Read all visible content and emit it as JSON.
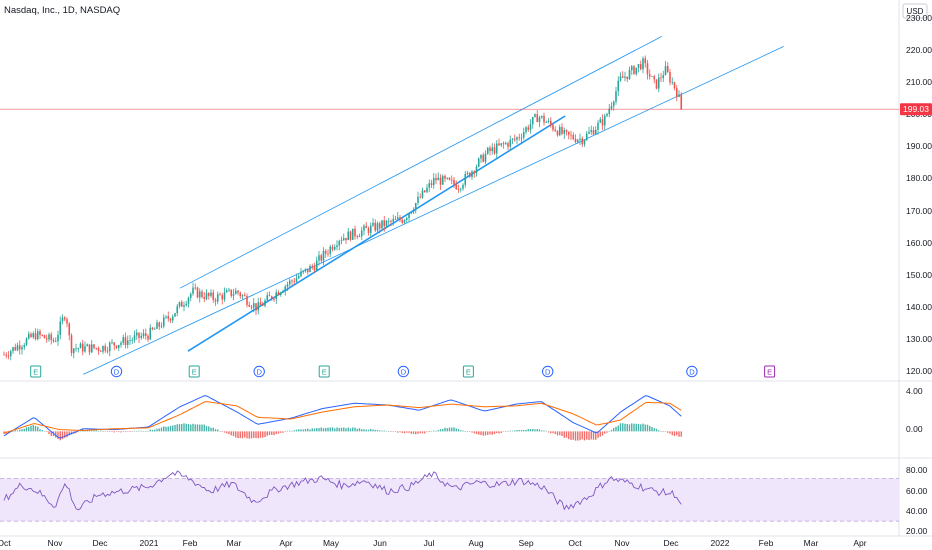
{
  "header": {
    "title": "Nasdaq, Inc., 1D, NASDAQ",
    "currency": "USD"
  },
  "price_axis": {
    "ticks": [
      "230.00",
      "220.00",
      "210.00",
      "200.00",
      "190.00",
      "180.00",
      "170.00",
      "160.00",
      "150.00",
      "140.00",
      "130.00",
      "120.00"
    ],
    "last_price_label": "199.03"
  },
  "macd_axis": {
    "ticks": [
      "4.00",
      "0.00"
    ]
  },
  "rsi_axis": {
    "ticks": [
      "80.00",
      "60.00",
      "40.00",
      "20.00"
    ]
  },
  "time_axis": {
    "labels": [
      "Oct",
      "Nov",
      "Dec",
      "2021",
      "Feb",
      "Mar",
      "Apr",
      "May",
      "Jun",
      "Jul",
      "Aug",
      "Sep",
      "Oct",
      "Nov",
      "Dec",
      "2022",
      "Feb",
      "Mar",
      "Apr"
    ]
  },
  "events": [
    {
      "label": "E",
      "date": "2020-10-21"
    },
    {
      "label": "D",
      "date": "2020-12-11"
    },
    {
      "label": "E",
      "date": "2021-01-29"
    },
    {
      "label": "D",
      "date": "2021-03-11"
    },
    {
      "label": "E",
      "date": "2021-04-21"
    },
    {
      "label": "D",
      "date": "2021-06-10"
    },
    {
      "label": "E",
      "date": "2021-07-21"
    },
    {
      "label": "D",
      "date": "2021-09-09"
    },
    {
      "label": "D",
      "date": "2021-12-09"
    },
    {
      "label": "E",
      "date": "2022-01-27"
    }
  ],
  "colors": {
    "up": "#26a69a",
    "down": "#ef5350",
    "trend": "#2196f3",
    "price_line": "#f23645",
    "macd": "#2962ff",
    "signal": "#ff6d00",
    "rsi": "#7e57c2",
    "rsi_band": "#f0e6fb",
    "axis_text": "#131722",
    "grid": "#e0e3eb"
  },
  "chart_data": [
    {
      "type": "candlestick",
      "ylim": [
        117,
        232
      ],
      "last_price": 199.03,
      "series": [
        {
          "x": "2020-10-01",
          "y": 125.0
        },
        {
          "x": "2020-10-21",
          "y": 131.0
        },
        {
          "x": "2020-11-02",
          "y": 129.0
        },
        {
          "x": "2020-11-09",
          "y": 138.0
        },
        {
          "x": "2020-11-12",
          "y": 127.0
        },
        {
          "x": "2020-12-01",
          "y": 127.0
        },
        {
          "x": "2020-12-31",
          "y": 131.0
        },
        {
          "x": "2021-01-15",
          "y": 137.0
        },
        {
          "x": "2021-01-28",
          "y": 144.0
        },
        {
          "x": "2021-02-10",
          "y": 142.0
        },
        {
          "x": "2021-02-25",
          "y": 144.0
        },
        {
          "x": "2021-03-10",
          "y": 139.0
        },
        {
          "x": "2021-03-25",
          "y": 145.0
        },
        {
          "x": "2021-04-15",
          "y": 152.0
        },
        {
          "x": "2021-04-30",
          "y": 160.0
        },
        {
          "x": "2021-05-20",
          "y": 163.0
        },
        {
          "x": "2021-06-10",
          "y": 166.0
        },
        {
          "x": "2021-06-30",
          "y": 178.0
        },
        {
          "x": "2021-07-15",
          "y": 176.0
        },
        {
          "x": "2021-08-02",
          "y": 186.0
        },
        {
          "x": "2021-08-20",
          "y": 190.0
        },
        {
          "x": "2021-09-03",
          "y": 197.0
        },
        {
          "x": "2021-09-20",
          "y": 191.0
        },
        {
          "x": "2021-10-01",
          "y": 190.0
        },
        {
          "x": "2021-10-15",
          "y": 196.0
        },
        {
          "x": "2021-10-25",
          "y": 208.0
        },
        {
          "x": "2021-11-08",
          "y": 213.0
        },
        {
          "x": "2021-11-16",
          "y": 206.0
        },
        {
          "x": "2021-11-22",
          "y": 211.0
        },
        {
          "x": "2021-11-29",
          "y": 205.0
        },
        {
          "x": "2021-12-03",
          "y": 199.03
        }
      ],
      "trendlines": [
        {
          "name": "",
          "x": [
            "2021-01-25",
            "2021-09-20"
          ],
          "y": [
            126,
            197
          ]
        },
        {
          "name": "",
          "x": [
            "2020-11-20",
            "2022-02-05"
          ],
          "y": [
            119,
            218
          ]
        },
        {
          "name": "",
          "x": [
            "2021-01-20",
            "2021-11-20"
          ],
          "y": [
            145,
            221
          ]
        }
      ]
    },
    {
      "type": "line",
      "ylabel": "",
      "ylim": [
        -2.8,
        5.5
      ],
      "series": [
        {
          "name": "",
          "role": "macd",
          "x": [
            "2020-10-01",
            "2020-10-20",
            "2020-11-05",
            "2020-11-20",
            "2020-12-10",
            "2020-12-31",
            "2021-01-20",
            "2021-02-05",
            "2021-02-25",
            "2021-03-10",
            "2021-03-31",
            "2021-04-20",
            "2021-05-10",
            "2021-05-31",
            "2021-06-20",
            "2021-07-10",
            "2021-07-31",
            "2021-08-20",
            "2021-09-05",
            "2021-09-25",
            "2021-10-10",
            "2021-10-25",
            "2021-11-10",
            "2021-11-25",
            "2021-12-03"
          ],
          "y": [
            -0.5,
            1.6,
            -0.8,
            0.3,
            0.2,
            0.5,
            2.8,
            4.1,
            2.2,
            0.8,
            1.5,
            2.6,
            3.2,
            3.0,
            2.4,
            3.6,
            2.3,
            3.1,
            3.4,
            1.0,
            -0.2,
            2.2,
            4.1,
            2.9,
            1.6
          ]
        },
        {
          "name": "",
          "role": "signal",
          "x": [
            "2020-10-01",
            "2020-10-20",
            "2020-11-05",
            "2020-11-20",
            "2020-12-10",
            "2020-12-31",
            "2021-01-20",
            "2021-02-05",
            "2021-02-25",
            "2021-03-10",
            "2021-03-31",
            "2021-04-20",
            "2021-05-10",
            "2021-05-31",
            "2021-06-20",
            "2021-07-10",
            "2021-07-31",
            "2021-08-20",
            "2021-09-05",
            "2021-09-25",
            "2021-10-10",
            "2021-10-25",
            "2021-11-10",
            "2021-11-25",
            "2021-12-03"
          ],
          "y": [
            -0.2,
            0.9,
            0.2,
            0.1,
            0.3,
            0.4,
            1.9,
            3.4,
            2.9,
            1.6,
            1.4,
            2.2,
            2.8,
            3.0,
            2.7,
            3.1,
            2.8,
            2.9,
            3.2,
            2.0,
            0.7,
            1.3,
            3.3,
            3.2,
            2.3
          ]
        },
        {
          "name": "",
          "role": "histogram",
          "x": [
            "2020-10-01",
            "2020-10-20",
            "2020-11-05",
            "2020-11-20",
            "2020-12-10",
            "2020-12-31",
            "2021-01-20",
            "2021-02-05",
            "2021-02-25",
            "2021-03-10",
            "2021-03-31",
            "2021-04-20",
            "2021-05-10",
            "2021-05-31",
            "2021-06-20",
            "2021-07-10",
            "2021-07-31",
            "2021-08-20",
            "2021-09-05",
            "2021-09-25",
            "2021-10-10",
            "2021-10-25",
            "2021-11-10",
            "2021-11-25",
            "2021-12-03"
          ],
          "y": [
            -0.3,
            0.7,
            -1.0,
            0.2,
            -0.1,
            0.1,
            0.9,
            0.7,
            -0.7,
            -0.8,
            0.1,
            0.4,
            0.4,
            0.0,
            -0.3,
            0.5,
            -0.5,
            0.2,
            0.2,
            -1.0,
            -0.9,
            0.9,
            0.8,
            -0.3,
            -0.7
          ]
        }
      ]
    },
    {
      "type": "line",
      "ylabel": "",
      "ylim": [
        17,
        88
      ],
      "bands": [
        30,
        70
      ],
      "series": [
        {
          "name": "",
          "x": [
            "2020-10-01",
            "2020-10-12",
            "2020-10-22",
            "2020-11-02",
            "2020-11-09",
            "2020-11-16",
            "2020-11-30",
            "2020-12-14",
            "2020-12-31",
            "2021-01-15",
            "2021-01-25",
            "2021-02-08",
            "2021-02-22",
            "2021-03-08",
            "2021-03-22",
            "2021-04-05",
            "2021-04-19",
            "2021-05-03",
            "2021-05-17",
            "2021-05-31",
            "2021-06-14",
            "2021-06-28",
            "2021-07-12",
            "2021-07-26",
            "2021-08-09",
            "2021-08-23",
            "2021-09-06",
            "2021-09-20",
            "2021-10-04",
            "2021-10-18",
            "2021-11-01",
            "2021-11-15",
            "2021-11-29",
            "2021-12-03"
          ],
          "y": [
            50,
            64,
            58,
            44,
            66,
            40,
            55,
            58,
            62,
            75,
            70,
            58,
            65,
            48,
            60,
            66,
            70,
            63,
            68,
            58,
            62,
            74,
            60,
            66,
            64,
            68,
            62,
            42,
            52,
            70,
            65,
            58,
            55,
            42
          ]
        }
      ]
    }
  ]
}
